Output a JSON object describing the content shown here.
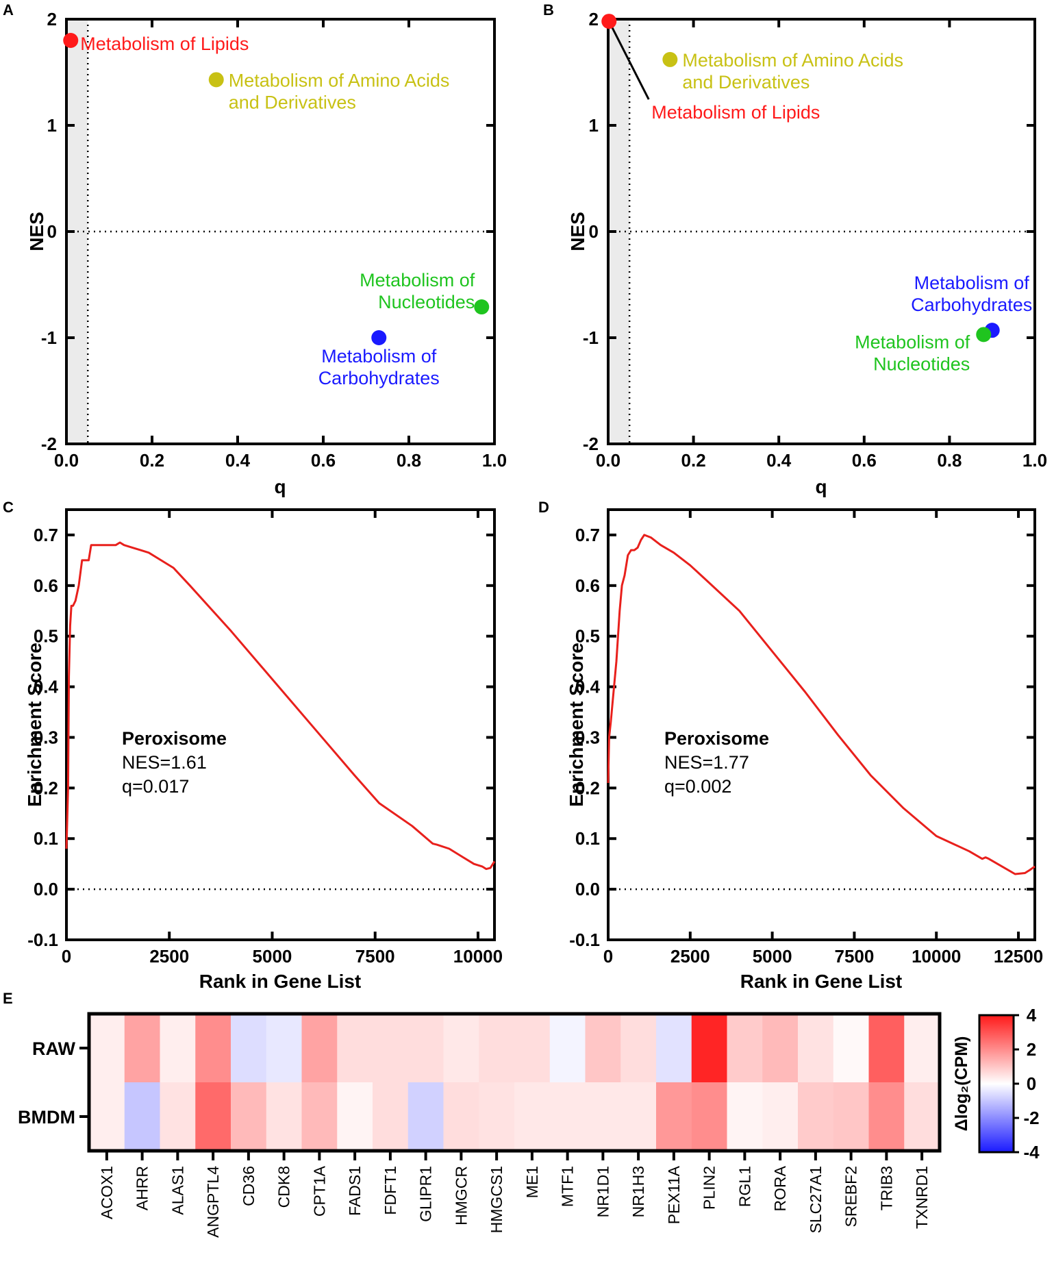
{
  "panels": {
    "A": "A",
    "B": "B",
    "C": "C",
    "D": "D",
    "E": "E"
  },
  "chart_data": [
    {
      "id": "A",
      "type": "scatter",
      "xlabel": "q",
      "ylabel": "NES",
      "xlim": [
        0,
        1.0
      ],
      "ylim": [
        -2,
        2
      ],
      "xticks": [
        "0.0",
        "0.2",
        "0.4",
        "0.6",
        "0.8",
        "1.0"
      ],
      "yticks": [
        "2",
        "1",
        "0",
        "-1",
        "-2"
      ],
      "shade_q_below": 0.05,
      "points": [
        {
          "label": "Metabolism of Lipids",
          "lines": [
            "Metabolism of Lipids"
          ],
          "q": 0.01,
          "nes": 1.8,
          "color": "#ff1a1a"
        },
        {
          "label": "Metabolism of Amino Acids and Derivatives",
          "lines": [
            "Metabolism of Amino Acids",
            "and Derivatives"
          ],
          "q": 0.35,
          "nes": 1.43,
          "color": "#c8c114"
        },
        {
          "label": "Metabolism of Nucleotides",
          "lines": [
            "Metabolism of",
            "Nucleotides"
          ],
          "q": 0.97,
          "nes": -0.71,
          "color": "#1fc41f"
        },
        {
          "label": "Metabolism of Carbohydrates",
          "lines": [
            "Metabolism of",
            "Carbohydrates"
          ],
          "q": 0.73,
          "nes": -1.0,
          "color": "#1a1aff"
        }
      ]
    },
    {
      "id": "B",
      "type": "scatter",
      "xlabel": "q",
      "ylabel": "NES",
      "xlim": [
        0,
        1.0
      ],
      "ylim": [
        -2,
        2
      ],
      "xticks": [
        "0.0",
        "0.2",
        "0.4",
        "0.6",
        "0.8",
        "1.0"
      ],
      "yticks": [
        "2",
        "1",
        "0",
        "-1",
        "-2"
      ],
      "shade_q_below": 0.05,
      "points": [
        {
          "label": "Metabolism of Lipids",
          "lines": [
            "Metabolism of Lipids"
          ],
          "q": 0.002,
          "nes": 1.98,
          "color": "#ff1a1a"
        },
        {
          "label": "Metabolism of Amino Acids and Derivatives",
          "lines": [
            "Metabolism of Amino Acids",
            "and Derivatives"
          ],
          "q": 0.145,
          "nes": 1.62,
          "color": "#c8c114"
        },
        {
          "label": "Metabolism of Carbohydrates",
          "lines": [
            "Metabolism of",
            "Carbohydrates"
          ],
          "q": 0.9,
          "nes": -0.93,
          "color": "#1a1aff"
        },
        {
          "label": "Metabolism of Nucleotides",
          "lines": [
            "Metabolism of",
            "Nucleotides"
          ],
          "q": 0.88,
          "nes": -0.97,
          "color": "#1fc41f"
        }
      ]
    },
    {
      "id": "C",
      "type": "line",
      "xlabel": "Rank in Gene List",
      "ylabel": "Enrichment Score",
      "xlim": [
        0,
        10400
      ],
      "ylim": [
        -0.1,
        0.75
      ],
      "xticks": [
        0,
        2500,
        5000,
        7500,
        10000
      ],
      "yticks": [
        -0.1,
        0.0,
        0.1,
        0.2,
        0.3,
        0.4,
        0.5,
        0.6,
        0.7
      ],
      "ytick_labels": [
        "-0.1",
        "0.0",
        "0.1",
        "0.2",
        "0.3",
        "0.4",
        "0.5",
        "0.6",
        "0.7"
      ],
      "gene_set": "Peroxisome",
      "nes_text": "NES=1.61",
      "q_text": "q=0.017",
      "color": "#e8201c",
      "x": [
        0,
        40,
        60,
        90,
        120,
        160,
        220,
        300,
        380,
        460,
        540,
        600,
        900,
        1200,
        1300,
        1400,
        1600,
        1800,
        2000,
        2300,
        2600,
        3000,
        4000,
        5000,
        6000,
        7000,
        7600,
        8400,
        8900,
        9000,
        9300,
        9600,
        9900,
        10100,
        10200,
        10300,
        10400
      ],
      "y": [
        0.08,
        0.2,
        0.42,
        0.52,
        0.56,
        0.56,
        0.57,
        0.6,
        0.65,
        0.65,
        0.65,
        0.68,
        0.68,
        0.68,
        0.685,
        0.68,
        0.675,
        0.67,
        0.665,
        0.65,
        0.635,
        0.6,
        0.51,
        0.415,
        0.32,
        0.225,
        0.17,
        0.125,
        0.09,
        0.088,
        0.08,
        0.065,
        0.05,
        0.045,
        0.04,
        0.042,
        0.055
      ]
    },
    {
      "id": "D",
      "type": "line",
      "xlabel": "Rank in Gene List",
      "ylabel": "Enrichment Score",
      "xlim": [
        0,
        13000
      ],
      "ylim": [
        -0.1,
        0.75
      ],
      "xticks": [
        0,
        2500,
        5000,
        7500,
        10000,
        12500
      ],
      "yticks": [
        -0.1,
        0.0,
        0.1,
        0.2,
        0.3,
        0.4,
        0.5,
        0.6,
        0.7
      ],
      "ytick_labels": [
        "-0.1",
        "0.0",
        "0.1",
        "0.2",
        "0.3",
        "0.4",
        "0.5",
        "0.6",
        "0.7"
      ],
      "gene_set": "Peroxisome",
      "nes_text": "NES=1.77",
      "q_text": "q=0.002",
      "color": "#e8201c",
      "x": [
        0,
        30,
        80,
        150,
        250,
        350,
        420,
        500,
        600,
        700,
        800,
        900,
        1000,
        1100,
        1300,
        1600,
        2000,
        2500,
        3000,
        4000,
        5000,
        6000,
        7000,
        8000,
        9000,
        10000,
        10500,
        11000,
        11400,
        11500,
        11600,
        12000,
        12400,
        12700,
        12850,
        13000
      ],
      "y": [
        0.21,
        0.3,
        0.33,
        0.38,
        0.45,
        0.55,
        0.6,
        0.62,
        0.66,
        0.67,
        0.67,
        0.675,
        0.69,
        0.7,
        0.695,
        0.68,
        0.665,
        0.64,
        0.61,
        0.55,
        0.47,
        0.39,
        0.305,
        0.225,
        0.16,
        0.105,
        0.09,
        0.075,
        0.06,
        0.063,
        0.06,
        0.045,
        0.03,
        0.032,
        0.038,
        0.045
      ]
    },
    {
      "id": "E",
      "type": "heatmap",
      "rows": [
        "RAW",
        "BMDM"
      ],
      "columns": [
        "ACOX1",
        "AHRR",
        "ALAS1",
        "ANGPTL4",
        "CD36",
        "CDK8",
        "CPT1A",
        "FADS1",
        "FDFT1",
        "GLIPR1",
        "HMGCR",
        "HMGCS1",
        "ME1",
        "MTF1",
        "NR1D1",
        "NR1H3",
        "PEX11A",
        "PLIN2",
        "RGL1",
        "RORA",
        "SLC27A1",
        "SREBF2",
        "TRIB3",
        "TXNRD1"
      ],
      "values": [
        [
          0.3,
          1.6,
          0.3,
          2.0,
          -0.6,
          -0.4,
          1.6,
          0.6,
          0.6,
          0.6,
          0.4,
          0.6,
          0.6,
          -0.2,
          1.0,
          0.6,
          -0.5,
          3.8,
          0.9,
          1.2,
          0.5,
          0.1,
          2.8,
          0.3
        ],
        [
          0.3,
          -1.0,
          0.5,
          2.6,
          1.2,
          0.5,
          1.2,
          0.2,
          0.6,
          -0.8,
          0.6,
          0.5,
          0.4,
          0.4,
          0.4,
          0.4,
          1.8,
          2.0,
          0.2,
          0.3,
          0.9,
          1.0,
          2.0,
          0.6
        ]
      ],
      "colorbar": {
        "min": -4,
        "max": 4,
        "ticks": [
          "4",
          "2",
          "0",
          "-2",
          "-4"
        ],
        "label": "Δlog₂(CPM)",
        "neg_color": "#1a1aff",
        "mid_color": "#ffffff",
        "pos_color": "#ff1a1a"
      }
    }
  ]
}
